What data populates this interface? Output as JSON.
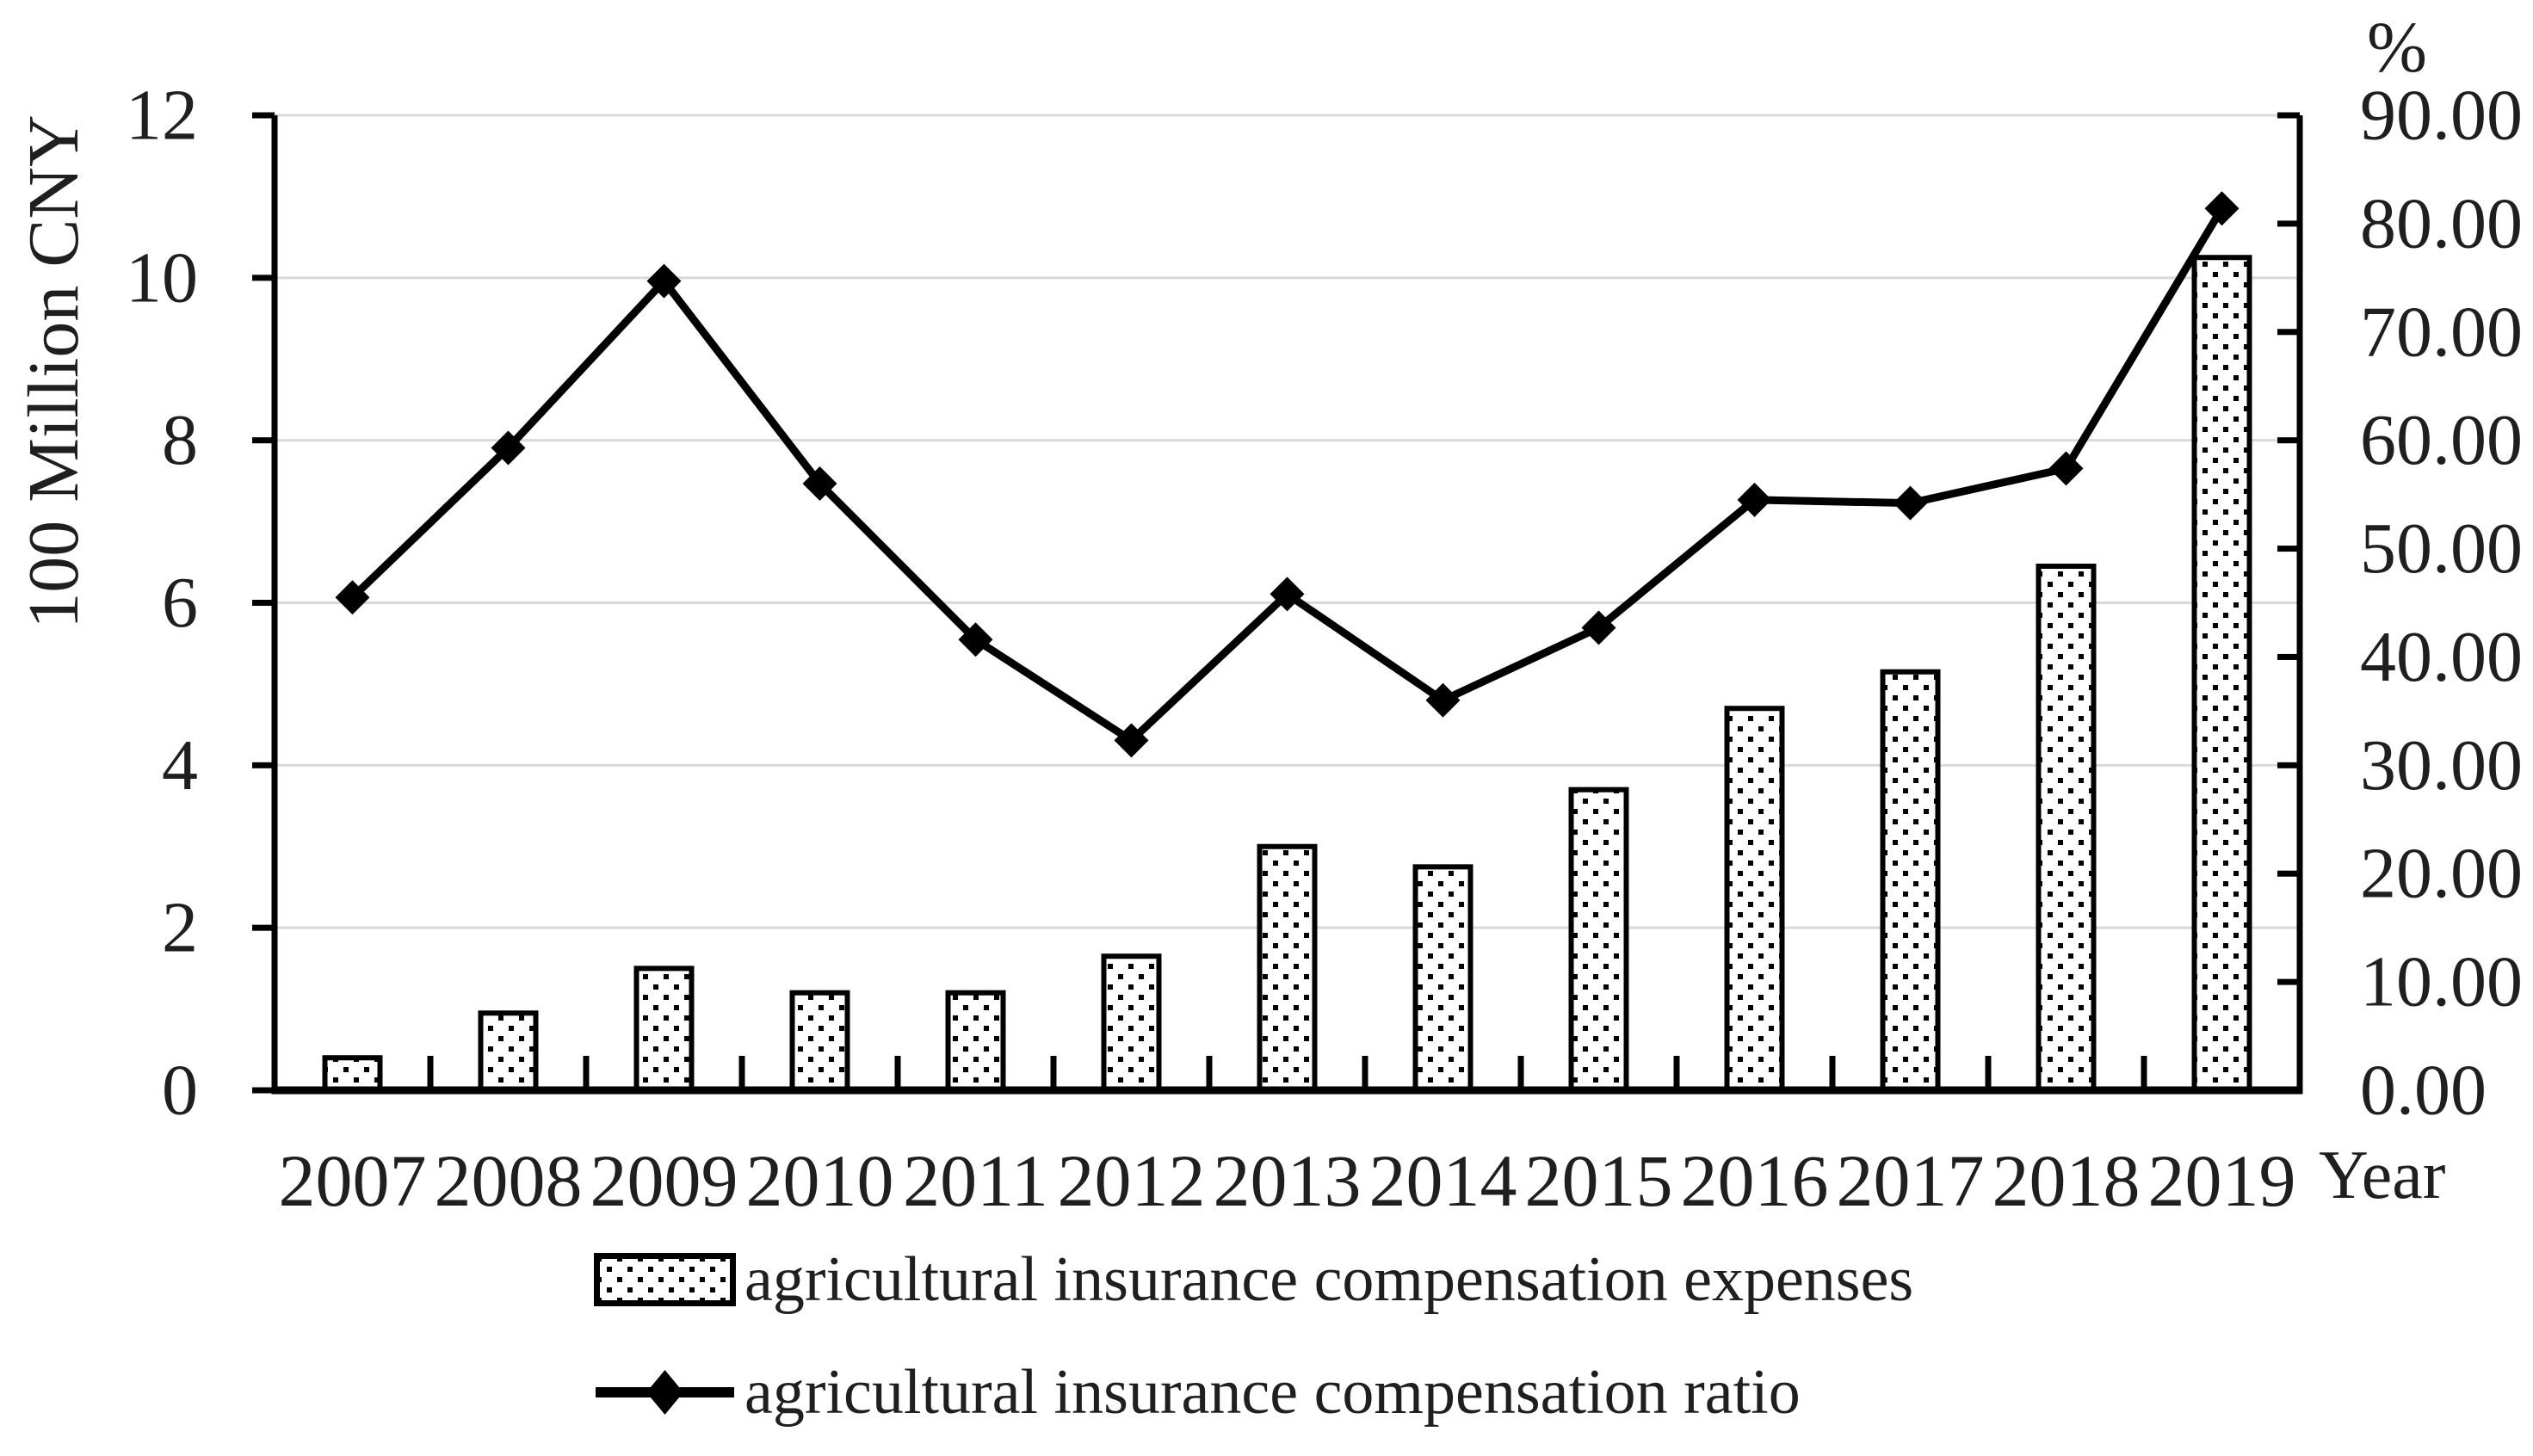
{
  "chart_data": {
    "type": "bar",
    "subtype": "dual-axis bar + line combo",
    "categories": [
      "2007",
      "2008",
      "2009",
      "2010",
      "2011",
      "2012",
      "2013",
      "2014",
      "2015",
      "2016",
      "2017",
      "2018",
      "2019"
    ],
    "series": [
      {
        "name": "agricultural insurance compensation expenses",
        "type": "bar",
        "axis": "left",
        "unit": "100 Million CNY",
        "values": [
          0.4,
          0.95,
          1.5,
          1.2,
          1.2,
          1.65,
          3.0,
          2.75,
          3.7,
          4.7,
          5.15,
          6.45,
          10.25
        ]
      },
      {
        "name": "agricultural insurance compensation ratio",
        "type": "line",
        "axis": "right",
        "unit": "%",
        "values": [
          45.5,
          59.3,
          74.7,
          56.0,
          41.6,
          32.3,
          45.8,
          36.0,
          42.7,
          54.5,
          54.2,
          57.4,
          81.4
        ]
      }
    ],
    "left_axis": {
      "title": "100 Million CNY",
      "min": 0,
      "max": 12,
      "step": 2,
      "tick_labels": [
        "0",
        "2",
        "4",
        "6",
        "8",
        "10",
        "12"
      ]
    },
    "right_axis": {
      "title": "%",
      "min": 0,
      "max": 90,
      "step": 10,
      "tick_labels": [
        "0.00",
        "10.00",
        "20.00",
        "30.00",
        "40.00",
        "50.00",
        "60.00",
        "70.00",
        "80.00",
        "90.00"
      ]
    },
    "x_axis": {
      "title": "Year"
    },
    "legend_position": "bottom-left, stacked rows",
    "grid": "horizontal gridlines at every 2 left-axis units",
    "colors": {
      "ink": "#000000",
      "text": "#1f1f1f",
      "gridline": "#d9d9d9",
      "bar_fill": "#ffffff",
      "bar_pattern_dot": "#000000",
      "background": "#ffffff"
    }
  }
}
